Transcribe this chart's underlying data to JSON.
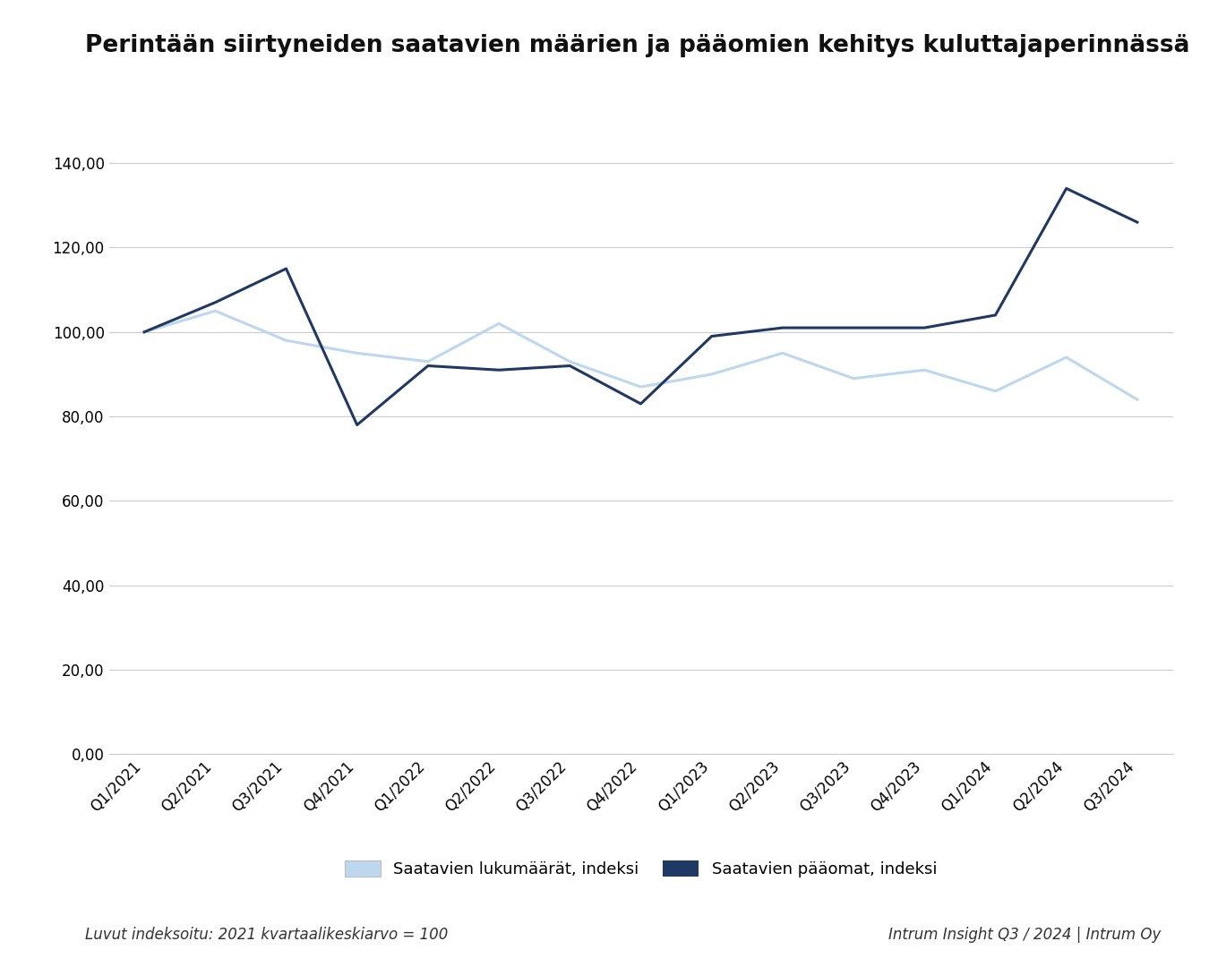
{
  "title": "Perintään siirtyneiden saatavien määrien ja pääomien kehitys kuluttajaperinnässä",
  "categories": [
    "Q1/2021",
    "Q2/2021",
    "Q3/2021",
    "Q4/2021",
    "Q1/2022",
    "Q2/2022",
    "Q3/2022",
    "Q4/2022",
    "Q1/2023",
    "Q2/2023",
    "Q3/2023",
    "Q4/2023",
    "Q1/2024",
    "Q2/2024",
    "Q3/2024"
  ],
  "lukumaarat": [
    100.0,
    105.0,
    98.0,
    95.0,
    93.0,
    102.0,
    93.0,
    87.0,
    90.0,
    95.0,
    89.0,
    91.0,
    86.0,
    94.0,
    84.0
  ],
  "paaomat": [
    100.0,
    107.0,
    115.0,
    78.0,
    92.0,
    91.0,
    92.0,
    83.0,
    99.0,
    101.0,
    101.0,
    101.0,
    104.0,
    134.0,
    126.0
  ],
  "lukumaarat_color": "#BDD7EE",
  "paaomat_color": "#1F3864",
  "background_color": "#FFFFFF",
  "grid_color": "#CCCCCC",
  "ylim": [
    0,
    150
  ],
  "yticks": [
    0,
    20,
    40,
    60,
    80,
    100,
    120,
    140
  ],
  "title_fontsize": 19,
  "tick_fontsize": 12,
  "legend_fontsize": 13,
  "footer_fontsize": 12,
  "line_width": 2.2,
  "legend_label_1": "Saatavien lukumäärät, indeksi",
  "legend_label_2": "Saatavien pääomat, indeksi",
  "footer_left": "Luvut indeksoitu: 2021 kvartaalikeskiarvo = 100",
  "footer_right": "Intrum Insight Q3 / 2024 | Intrum Oy"
}
